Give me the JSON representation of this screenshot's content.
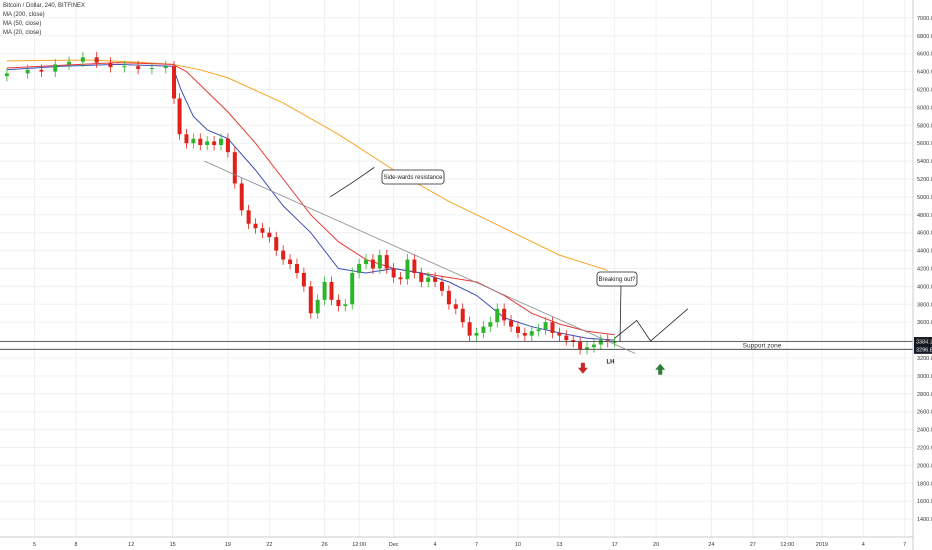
{
  "legend": {
    "symbol": "Bitcoin / Dollar, 240, BITFINEX",
    "ma200": "MA (200, close)",
    "ma50": "MA (50, close)",
    "ma20": "MA (20, close)"
  },
  "colors": {
    "up": "#2db52a",
    "down": "#e0201a",
    "ma200": "#f5a623",
    "ma50": "#e53935",
    "ma20": "#3f51b5",
    "grid": "#eef1f4",
    "support": "#333333",
    "trendline": "#8a8a8a",
    "arrow_down": "#c62828",
    "arrow_up": "#2e7d32",
    "price_tag_green": "#26a641",
    "label_dark": "#131722"
  },
  "chart_data": {
    "type": "candlestick",
    "title": "Bitcoin / Dollar, 240, BITFINEX",
    "ylim": [
      1200,
      7200
    ],
    "y_ticks": [
      1400,
      1600,
      1800,
      2000,
      2200,
      2400,
      2600,
      2800,
      3000,
      3200,
      3400,
      3600,
      3800,
      4000,
      4200,
      4400,
      4600,
      4800,
      5000,
      5200,
      5400,
      5600,
      5800,
      6000,
      6200,
      6400,
      6600,
      6800,
      7000
    ],
    "y_tick_labels": [
      "1400.0",
      "1600.0",
      "1800.0",
      "2000.0",
      "2200.0",
      "2400.0",
      "2600.0",
      "2800.0",
      "3000.0",
      "3200.0",
      "3400.0",
      "3600.0",
      "3800.0",
      "4000.0",
      "4200.0",
      "4400.0",
      "4600.0",
      "4800.0",
      "5000.0",
      "5200.0",
      "5400.0",
      "5600.0",
      "5800.0",
      "6000.0",
      "6200.0",
      "6400.0",
      "6600.0",
      "6800.0",
      "7000.0"
    ],
    "x_ticks": [
      {
        "label": "5",
        "t": 2
      },
      {
        "label": "8",
        "t": 5
      },
      {
        "label": "12",
        "t": 9
      },
      {
        "label": "15",
        "t": 12
      },
      {
        "label": "19",
        "t": 16
      },
      {
        "label": "22",
        "t": 19
      },
      {
        "label": "26",
        "t": 23
      },
      {
        "label": "12:00",
        "t": 25.5
      },
      {
        "label": "Dec",
        "t": 28
      },
      {
        "label": "4",
        "t": 31
      },
      {
        "label": "7",
        "t": 34
      },
      {
        "label": "10",
        "t": 37
      },
      {
        "label": "13",
        "t": 40
      },
      {
        "label": "17",
        "t": 44
      },
      {
        "label": "20",
        "t": 47
      },
      {
        "label": "24",
        "t": 51
      },
      {
        "label": "27",
        "t": 54
      },
      {
        "label": "12:00",
        "t": 56.5
      },
      {
        "label": "2019",
        "t": 59
      },
      {
        "label": "4",
        "t": 62
      },
      {
        "label": "7",
        "t": 65
      }
    ],
    "series": [
      {
        "name": "Price",
        "type": "candles",
        "t": [
          0,
          1.5,
          2.5,
          3.5,
          4.5,
          5.5,
          6.5,
          7.5,
          8.5,
          9.5,
          10.5,
          11.5,
          12.1,
          12.5,
          13,
          13.5,
          14,
          14.5,
          15,
          15.5,
          16,
          16.5,
          17,
          17.5,
          18,
          18.5,
          19,
          19.5,
          20,
          20.5,
          21,
          21.5,
          22,
          22.5,
          23,
          23.5,
          24,
          24.5,
          25,
          25.5,
          26,
          26.5,
          27,
          27.5,
          28,
          28.5,
          29,
          29.5,
          30,
          30.5,
          31,
          31.5,
          32,
          32.5,
          33,
          33.5,
          34,
          34.5,
          35,
          35.5,
          36,
          36.5,
          37,
          37.5,
          38,
          38.5,
          39,
          39.5,
          40,
          40.5,
          41,
          41.5,
          42,
          42.5,
          43,
          43.5,
          44
        ],
        "close": [
          6380,
          6420,
          6400,
          6480,
          6510,
          6560,
          6500,
          6450,
          6460,
          6430,
          6440,
          6460,
          6100,
          5700,
          5600,
          5650,
          5580,
          5620,
          5580,
          5650,
          5500,
          5150,
          4850,
          4700,
          4650,
          4600,
          4550,
          4400,
          4300,
          4250,
          4150,
          4000,
          3700,
          3850,
          4050,
          3850,
          3780,
          3800,
          4150,
          4250,
          4300,
          4200,
          4350,
          4200,
          4100,
          4080,
          4300,
          4150,
          4050,
          4100,
          4050,
          3950,
          3800,
          3750,
          3600,
          3450,
          3480,
          3550,
          3600,
          3750,
          3620,
          3550,
          3480,
          3450,
          3500,
          3520,
          3600,
          3480,
          3450,
          3400,
          3380,
          3300,
          3320,
          3350,
          3400,
          3380,
          3380
        ]
      },
      {
        "name": "MA (200, close)",
        "x": [
          0,
          6,
          10,
          12,
          14,
          16,
          20,
          24,
          28,
          32,
          36,
          40,
          43.5
        ],
        "y": [
          6520,
          6530,
          6500,
          6480,
          6420,
          6330,
          6050,
          5700,
          5300,
          4950,
          4650,
          4350,
          4180
        ]
      },
      {
        "name": "MA (50, close)",
        "x": [
          0,
          4,
          8,
          12,
          13,
          14,
          16,
          18,
          20,
          22,
          24,
          26,
          28,
          30,
          32,
          34,
          36,
          38,
          40,
          42,
          44
        ],
        "y": [
          6440,
          6470,
          6500,
          6480,
          6400,
          6250,
          5950,
          5600,
          5200,
          4800,
          4500,
          4300,
          4200,
          4150,
          4100,
          4050,
          3900,
          3700,
          3580,
          3500,
          3460
        ]
      },
      {
        "name": "MA (20, close)",
        "x": [
          0,
          4,
          8,
          12,
          12.6,
          13.5,
          14.5,
          16,
          18,
          20,
          22,
          24,
          26,
          28,
          30,
          32,
          34,
          36,
          38,
          40,
          42,
          44
        ],
        "y": [
          6420,
          6460,
          6480,
          6460,
          6200,
          5900,
          5750,
          5650,
          5300,
          4900,
          4600,
          4200,
          4150,
          4200,
          4150,
          4050,
          3900,
          3650,
          3550,
          3480,
          3420,
          3400
        ]
      }
    ],
    "support_zone": {
      "label": "Support zone",
      "upper": 3384.1,
      "lower": 3296.8,
      "upper_label": "3384.1",
      "lower_label": "3296.8"
    },
    "annotations": [
      {
        "text": "Side-wards resistance"
      },
      {
        "text": "Breaking out?"
      },
      {
        "text": "LH"
      }
    ]
  }
}
